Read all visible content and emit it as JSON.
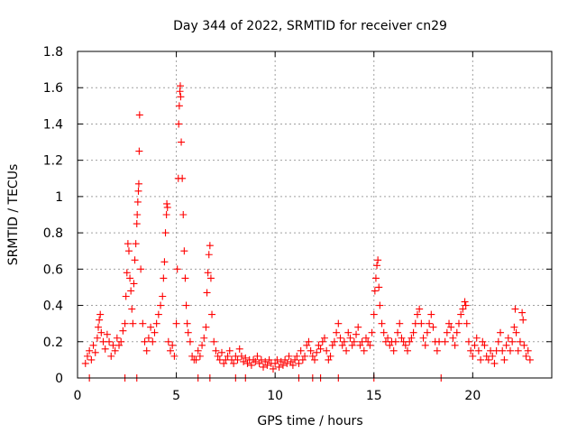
{
  "chart_data": {
    "type": "scatter",
    "title": "Day 344 of 2022, SRMTID for receiver cn29",
    "xlabel": "GPS time / hours",
    "ylabel": "SRMTID / TECUs",
    "xlim": [
      0,
      24
    ],
    "ylim": [
      0,
      1.8
    ],
    "xticks": [
      0,
      5,
      10,
      15,
      20
    ],
    "xtick_labels": [
      "0",
      "5",
      "10",
      "15",
      "20"
    ],
    "yticks": [
      0,
      0.2,
      0.4,
      0.6,
      0.8,
      1,
      1.2,
      1.4,
      1.6,
      1.8
    ],
    "ytick_labels": [
      "0",
      "0.2",
      "0.4",
      "0.6",
      "0.8",
      "1",
      "1.2",
      "1.4",
      "1.6",
      "1.8"
    ],
    "grid": true,
    "marker": "plus",
    "color": "#ff0000",
    "series": [
      {
        "name": "SRMTID",
        "points": [
          [
            0.4,
            0.08
          ],
          [
            0.5,
            0.12
          ],
          [
            0.6,
            0.15
          ],
          [
            0.7,
            0.1
          ],
          [
            0.8,
            0.18
          ],
          [
            0.9,
            0.14
          ],
          [
            1.0,
            0.22
          ],
          [
            1.05,
            0.28
          ],
          [
            1.1,
            0.32
          ],
          [
            1.15,
            0.35
          ],
          [
            1.2,
            0.25
          ],
          [
            1.3,
            0.2
          ],
          [
            1.4,
            0.16
          ],
          [
            1.5,
            0.24
          ],
          [
            1.6,
            0.2
          ],
          [
            1.7,
            0.12
          ],
          [
            1.8,
            0.18
          ],
          [
            1.9,
            0.15
          ],
          [
            2.0,
            0.22
          ],
          [
            2.1,
            0.18
          ],
          [
            2.2,
            0.2
          ],
          [
            2.3,
            0.26
          ],
          [
            2.4,
            0.3
          ],
          [
            2.45,
            0.45
          ],
          [
            2.5,
            0.58
          ],
          [
            2.55,
            0.74
          ],
          [
            2.6,
            0.7
          ],
          [
            2.65,
            0.55
          ],
          [
            2.7,
            0.48
          ],
          [
            2.75,
            0.38
          ],
          [
            2.8,
            0.3
          ],
          [
            2.85,
            0.52
          ],
          [
            2.9,
            0.65
          ],
          [
            2.95,
            0.74
          ],
          [
            3.0,
            0.85
          ],
          [
            3.02,
            0.9
          ],
          [
            3.05,
            0.97
          ],
          [
            3.08,
            1.03
          ],
          [
            3.1,
            1.07
          ],
          [
            3.12,
            1.25
          ],
          [
            3.14,
            1.45
          ],
          [
            3.2,
            0.6
          ],
          [
            3.3,
            0.3
          ],
          [
            3.4,
            0.2
          ],
          [
            3.5,
            0.15
          ],
          [
            3.6,
            0.22
          ],
          [
            3.7,
            0.28
          ],
          [
            3.8,
            0.2
          ],
          [
            3.9,
            0.25
          ],
          [
            4.0,
            0.3
          ],
          [
            4.1,
            0.35
          ],
          [
            4.2,
            0.4
          ],
          [
            4.3,
            0.45
          ],
          [
            4.35,
            0.55
          ],
          [
            4.4,
            0.64
          ],
          [
            4.45,
            0.8
          ],
          [
            4.5,
            0.9
          ],
          [
            4.52,
            0.96
          ],
          [
            4.55,
            0.94
          ],
          [
            4.6,
            0.2
          ],
          [
            4.7,
            0.15
          ],
          [
            4.8,
            0.18
          ],
          [
            4.9,
            0.12
          ],
          [
            5.0,
            0.3
          ],
          [
            5.05,
            0.6
          ],
          [
            5.1,
            1.1
          ],
          [
            5.12,
            1.4
          ],
          [
            5.15,
            1.5
          ],
          [
            5.18,
            1.58
          ],
          [
            5.2,
            1.61
          ],
          [
            5.22,
            1.55
          ],
          [
            5.25,
            1.3
          ],
          [
            5.3,
            1.1
          ],
          [
            5.35,
            0.9
          ],
          [
            5.4,
            0.7
          ],
          [
            5.45,
            0.55
          ],
          [
            5.5,
            0.4
          ],
          [
            5.55,
            0.3
          ],
          [
            5.6,
            0.25
          ],
          [
            5.7,
            0.2
          ],
          [
            5.8,
            0.12
          ],
          [
            5.9,
            0.1
          ],
          [
            6.0,
            0.1
          ],
          [
            6.1,
            0.15
          ],
          [
            6.2,
            0.12
          ],
          [
            6.3,
            0.18
          ],
          [
            6.4,
            0.22
          ],
          [
            6.5,
            0.28
          ],
          [
            6.55,
            0.47
          ],
          [
            6.6,
            0.58
          ],
          [
            6.65,
            0.68
          ],
          [
            6.7,
            0.73
          ],
          [
            6.75,
            0.55
          ],
          [
            6.8,
            0.35
          ],
          [
            6.9,
            0.2
          ],
          [
            7.0,
            0.15
          ],
          [
            7.1,
            0.12
          ],
          [
            7.2,
            0.1
          ],
          [
            7.3,
            0.14
          ],
          [
            7.4,
            0.08
          ],
          [
            7.5,
            0.1
          ],
          [
            7.6,
            0.12
          ],
          [
            7.7,
            0.15
          ],
          [
            7.8,
            0.1
          ],
          [
            7.9,
            0.08
          ],
          [
            8.0,
            0.12
          ],
          [
            8.1,
            0.1
          ],
          [
            8.2,
            0.16
          ],
          [
            8.3,
            0.12
          ],
          [
            8.4,
            0.09
          ],
          [
            8.5,
            0.11
          ],
          [
            8.6,
            0.08
          ],
          [
            8.7,
            0.1
          ],
          [
            8.8,
            0.07
          ],
          [
            8.9,
            0.1
          ],
          [
            9.0,
            0.09
          ],
          [
            9.1,
            0.12
          ],
          [
            9.2,
            0.08
          ],
          [
            9.3,
            0.1
          ],
          [
            9.4,
            0.06
          ],
          [
            9.5,
            0.09
          ],
          [
            9.6,
            0.07
          ],
          [
            9.7,
            0.1
          ],
          [
            9.8,
            0.08
          ],
          [
            9.9,
            0.05
          ],
          [
            10.0,
            0.08
          ],
          [
            10.1,
            0.1
          ],
          [
            10.2,
            0.06
          ],
          [
            10.3,
            0.09
          ],
          [
            10.4,
            0.07
          ],
          [
            10.5,
            0.1
          ],
          [
            10.6,
            0.08
          ],
          [
            10.7,
            0.12
          ],
          [
            10.8,
            0.09
          ],
          [
            10.9,
            0.07
          ],
          [
            11.0,
            0.1
          ],
          [
            11.1,
            0.12
          ],
          [
            11.2,
            0.08
          ],
          [
            11.3,
            0.15
          ],
          [
            11.4,
            0.1
          ],
          [
            11.5,
            0.12
          ],
          [
            11.6,
            0.18
          ],
          [
            11.7,
            0.2
          ],
          [
            11.8,
            0.15
          ],
          [
            11.9,
            0.12
          ],
          [
            12.0,
            0.1
          ],
          [
            12.1,
            0.14
          ],
          [
            12.2,
            0.18
          ],
          [
            12.3,
            0.16
          ],
          [
            12.4,
            0.2
          ],
          [
            12.5,
            0.22
          ],
          [
            12.6,
            0.15
          ],
          [
            12.7,
            0.1
          ],
          [
            12.8,
            0.12
          ],
          [
            12.9,
            0.18
          ],
          [
            13.0,
            0.2
          ],
          [
            13.1,
            0.25
          ],
          [
            13.2,
            0.3
          ],
          [
            13.3,
            0.22
          ],
          [
            13.4,
            0.18
          ],
          [
            13.5,
            0.2
          ],
          [
            13.6,
            0.15
          ],
          [
            13.7,
            0.25
          ],
          [
            13.8,
            0.22
          ],
          [
            13.9,
            0.18
          ],
          [
            14.0,
            0.2
          ],
          [
            14.1,
            0.24
          ],
          [
            14.2,
            0.28
          ],
          [
            14.3,
            0.18
          ],
          [
            14.4,
            0.2
          ],
          [
            14.5,
            0.15
          ],
          [
            14.6,
            0.22
          ],
          [
            14.7,
            0.2
          ],
          [
            14.8,
            0.18
          ],
          [
            14.9,
            0.25
          ],
          [
            15.0,
            0.35
          ],
          [
            15.05,
            0.48
          ],
          [
            15.1,
            0.55
          ],
          [
            15.15,
            0.62
          ],
          [
            15.2,
            0.65
          ],
          [
            15.25,
            0.5
          ],
          [
            15.3,
            0.4
          ],
          [
            15.4,
            0.3
          ],
          [
            15.5,
            0.25
          ],
          [
            15.6,
            0.2
          ],
          [
            15.7,
            0.22
          ],
          [
            15.8,
            0.18
          ],
          [
            15.9,
            0.2
          ],
          [
            16.0,
            0.15
          ],
          [
            16.1,
            0.2
          ],
          [
            16.2,
            0.25
          ],
          [
            16.3,
            0.3
          ],
          [
            16.4,
            0.22
          ],
          [
            16.5,
            0.2
          ],
          [
            16.6,
            0.18
          ],
          [
            16.7,
            0.15
          ],
          [
            16.8,
            0.2
          ],
          [
            16.9,
            0.22
          ],
          [
            17.0,
            0.25
          ],
          [
            17.1,
            0.3
          ],
          [
            17.2,
            0.35
          ],
          [
            17.3,
            0.38
          ],
          [
            17.4,
            0.3
          ],
          [
            17.5,
            0.22
          ],
          [
            17.6,
            0.18
          ],
          [
            17.7,
            0.25
          ],
          [
            17.8,
            0.3
          ],
          [
            17.9,
            0.35
          ],
          [
            18.0,
            0.28
          ],
          [
            18.1,
            0.2
          ],
          [
            18.2,
            0.15
          ],
          [
            18.3,
            0.2
          ],
          [
            18.6,
            0.2
          ],
          [
            18.7,
            0.25
          ],
          [
            18.8,
            0.3
          ],
          [
            18.9,
            0.28
          ],
          [
            19.0,
            0.22
          ],
          [
            19.1,
            0.18
          ],
          [
            19.2,
            0.25
          ],
          [
            19.3,
            0.3
          ],
          [
            19.4,
            0.35
          ],
          [
            19.5,
            0.38
          ],
          [
            19.6,
            0.42
          ],
          [
            19.65,
            0.4
          ],
          [
            19.7,
            0.3
          ],
          [
            19.8,
            0.2
          ],
          [
            19.9,
            0.15
          ],
          [
            20.0,
            0.12
          ],
          [
            20.1,
            0.18
          ],
          [
            20.2,
            0.22
          ],
          [
            20.3,
            0.15
          ],
          [
            20.4,
            0.1
          ],
          [
            20.5,
            0.2
          ],
          [
            20.6,
            0.18
          ],
          [
            20.7,
            0.12
          ],
          [
            20.8,
            0.1
          ],
          [
            20.9,
            0.15
          ],
          [
            21.0,
            0.12
          ],
          [
            21.1,
            0.08
          ],
          [
            21.2,
            0.15
          ],
          [
            21.3,
            0.2
          ],
          [
            21.4,
            0.25
          ],
          [
            21.5,
            0.15
          ],
          [
            21.6,
            0.1
          ],
          [
            21.7,
            0.18
          ],
          [
            21.8,
            0.22
          ],
          [
            21.9,
            0.15
          ],
          [
            22.0,
            0.2
          ],
          [
            22.1,
            0.28
          ],
          [
            22.15,
            0.38
          ],
          [
            22.2,
            0.25
          ],
          [
            22.3,
            0.15
          ],
          [
            22.4,
            0.2
          ],
          [
            22.5,
            0.36
          ],
          [
            22.55,
            0.32
          ],
          [
            22.6,
            0.18
          ],
          [
            22.7,
            0.12
          ],
          [
            22.8,
            0.15
          ],
          [
            22.9,
            0.1
          ]
        ],
        "zero_points": [
          0.6,
          2.4,
          3.0,
          6.1,
          6.7,
          8.0,
          8.5,
          11.2,
          11.9,
          12.3,
          13.2,
          15.0,
          18.4
        ]
      }
    ]
  }
}
